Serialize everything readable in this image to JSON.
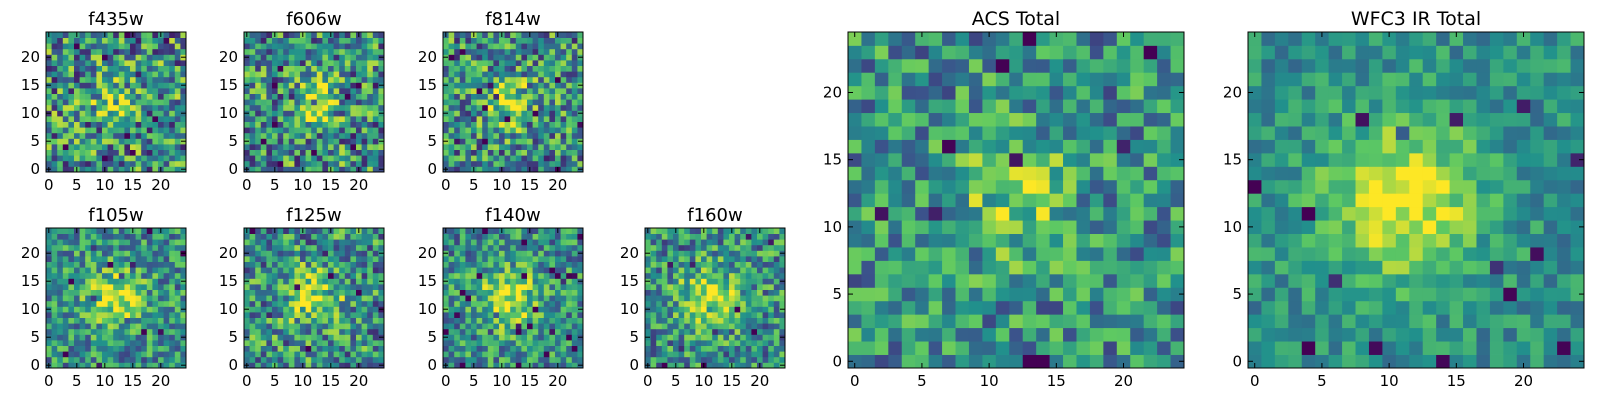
{
  "colormap": {
    "name": "viridis",
    "stops": [
      "#440154",
      "#3b528b",
      "#21918c",
      "#5ec962",
      "#fde725"
    ]
  },
  "chart_data": [
    {
      "type": "heatmap",
      "title": "f435w",
      "xlim": [
        0,
        24
      ],
      "ylim": [
        0,
        24
      ],
      "xticks": [
        "0",
        "5",
        "10",
        "15",
        "20"
      ],
      "yticks": [
        "0",
        "5",
        "10",
        "15",
        "20"
      ],
      "grid_size": 25,
      "center": [
        12,
        12
      ],
      "peak": 0.55,
      "spread": 2.6,
      "noise": 0.42,
      "seed": 11
    },
    {
      "type": "heatmap",
      "title": "f606w",
      "xlim": [
        0,
        24
      ],
      "ylim": [
        0,
        24
      ],
      "xticks": [
        "0",
        "5",
        "10",
        "15",
        "20"
      ],
      "yticks": [
        "0",
        "5",
        "10",
        "15",
        "20"
      ],
      "grid_size": 25,
      "center": [
        12,
        12
      ],
      "peak": 0.7,
      "spread": 3.0,
      "noise": 0.4,
      "seed": 23
    },
    {
      "type": "heatmap",
      "title": "f814w",
      "xlim": [
        0,
        24
      ],
      "ylim": [
        0,
        24
      ],
      "xticks": [
        "0",
        "5",
        "10",
        "15",
        "20"
      ],
      "yticks": [
        "0",
        "5",
        "10",
        "15",
        "20"
      ],
      "grid_size": 25,
      "center": [
        11,
        12
      ],
      "peak": 0.8,
      "spread": 3.0,
      "noise": 0.38,
      "seed": 37
    },
    {
      "type": "heatmap",
      "title": "f105w",
      "xlim": [
        0,
        24
      ],
      "ylim": [
        0,
        24
      ],
      "xticks": [
        "0",
        "5",
        "10",
        "15",
        "20"
      ],
      "yticks": [
        "0",
        "5",
        "10",
        "15",
        "20"
      ],
      "grid_size": 25,
      "center": [
        12,
        12
      ],
      "peak": 0.85,
      "spread": 3.5,
      "noise": 0.3,
      "seed": 41
    },
    {
      "type": "heatmap",
      "title": "f125w",
      "xlim": [
        0,
        24
      ],
      "ylim": [
        0,
        24
      ],
      "xticks": [
        "0",
        "5",
        "10",
        "15",
        "20"
      ],
      "yticks": [
        "0",
        "5",
        "10",
        "15",
        "20"
      ],
      "grid_size": 25,
      "center": [
        12,
        12
      ],
      "peak": 0.8,
      "spread": 3.4,
      "noise": 0.36,
      "seed": 53
    },
    {
      "type": "heatmap",
      "title": "f140w",
      "xlim": [
        0,
        24
      ],
      "ylim": [
        0,
        24
      ],
      "xticks": [
        "0",
        "5",
        "10",
        "15",
        "20"
      ],
      "yticks": [
        "0",
        "5",
        "10",
        "15",
        "20"
      ],
      "grid_size": 25,
      "center": [
        11,
        12
      ],
      "peak": 0.9,
      "spread": 3.6,
      "noise": 0.3,
      "seed": 67
    },
    {
      "type": "heatmap",
      "title": "f160w",
      "xlim": [
        0,
        24
      ],
      "ylim": [
        0,
        24
      ],
      "xticks": [
        "0",
        "5",
        "10",
        "15",
        "20"
      ],
      "yticks": [
        "0",
        "5",
        "10",
        "15",
        "20"
      ],
      "grid_size": 25,
      "center": [
        11,
        12
      ],
      "peak": 0.9,
      "spread": 3.6,
      "noise": 0.32,
      "seed": 79
    },
    {
      "type": "heatmap",
      "title": "ACS Total",
      "xlim": [
        0,
        24
      ],
      "ylim": [
        0,
        24
      ],
      "xticks": [
        "0",
        "5",
        "10",
        "15",
        "20"
      ],
      "yticks": [
        "0",
        "5",
        "10",
        "15",
        "20"
      ],
      "grid_size": 25,
      "center": [
        12,
        12
      ],
      "peak": 0.6,
      "spread": 3.0,
      "noise": 0.3,
      "seed": 97
    },
    {
      "type": "heatmap",
      "title": "WFC3 IR Total",
      "xlim": [
        0,
        24
      ],
      "ylim": [
        0,
        24
      ],
      "xticks": [
        "0",
        "5",
        "10",
        "15",
        "20"
      ],
      "yticks": [
        "0",
        "5",
        "10",
        "15",
        "20"
      ],
      "grid_size": 25,
      "center": [
        11,
        12
      ],
      "peak": 1.0,
      "spread": 4.0,
      "noise": 0.18,
      "seed": 131
    }
  ]
}
